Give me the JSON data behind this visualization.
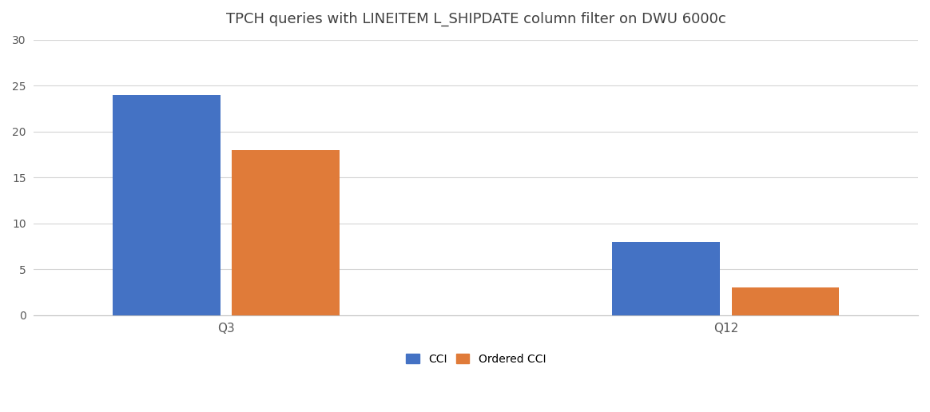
{
  "title": "TPCH queries with LINEITEM L_SHIPDATE column filter on DWU 6000c",
  "categories": [
    "Q3",
    "Q12"
  ],
  "cci_values": [
    24,
    8
  ],
  "ordered_cci_values": [
    18,
    3
  ],
  "cci_color": "#4472C4",
  "ordered_cci_color": "#E07B39",
  "ylim": [
    0,
    30
  ],
  "yticks": [
    0,
    5,
    10,
    15,
    20,
    25,
    30
  ],
  "legend_labels": [
    "CCI",
    "Ordered CCI"
  ],
  "bar_width": 0.28,
  "group_centers": [
    0.35,
    1.65
  ],
  "xlim": [
    -0.15,
    2.15
  ],
  "background_color": "#ffffff",
  "grid_color": "#d5d5d5",
  "title_fontsize": 13
}
